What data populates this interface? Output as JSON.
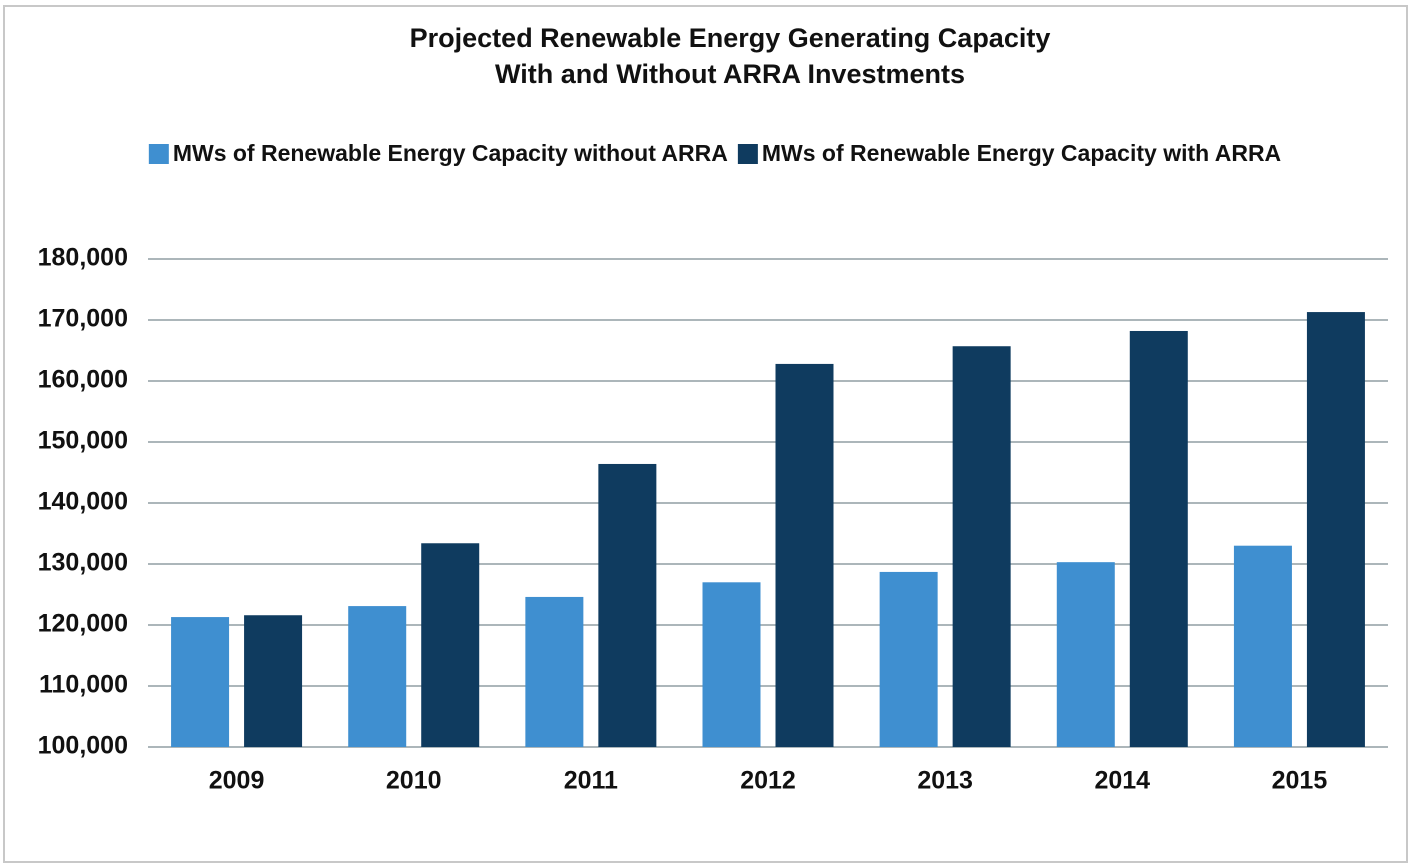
{
  "chart_data": {
    "type": "bar",
    "title": [
      "Projected Renewable Energy Generating Capacity",
      "With and Without ARRA Investments"
    ],
    "categories": [
      "2009",
      "2010",
      "2011",
      "2012",
      "2013",
      "2014",
      "2015"
    ],
    "series": [
      {
        "name": "MWs of Renewable Energy Capacity without ARRA",
        "color": "#3f8fd0",
        "values": [
          121300,
          123100,
          124600,
          127000,
          128700,
          130300,
          133000
        ]
      },
      {
        "name": "MWs of Renewable Energy Capacity with ARRA",
        "color": "#0f3b5f",
        "values": [
          121600,
          133400,
          146400,
          162800,
          165700,
          168200,
          171300
        ]
      }
    ],
    "ylim": [
      100000,
      180000
    ],
    "yticks": [
      {
        "value": 100000,
        "label": "100,000"
      },
      {
        "value": 110000,
        "label": "110,000"
      },
      {
        "value": 120000,
        "label": "120,000"
      },
      {
        "value": 130000,
        "label": "130,000"
      },
      {
        "value": 140000,
        "label": "140,000"
      },
      {
        "value": 150000,
        "label": "150,000"
      },
      {
        "value": 160000,
        "label": "160,000"
      },
      {
        "value": 170000,
        "label": "170,000"
      },
      {
        "value": 180000,
        "label": "180,000"
      }
    ],
    "grid": true,
    "legend": "top"
  }
}
